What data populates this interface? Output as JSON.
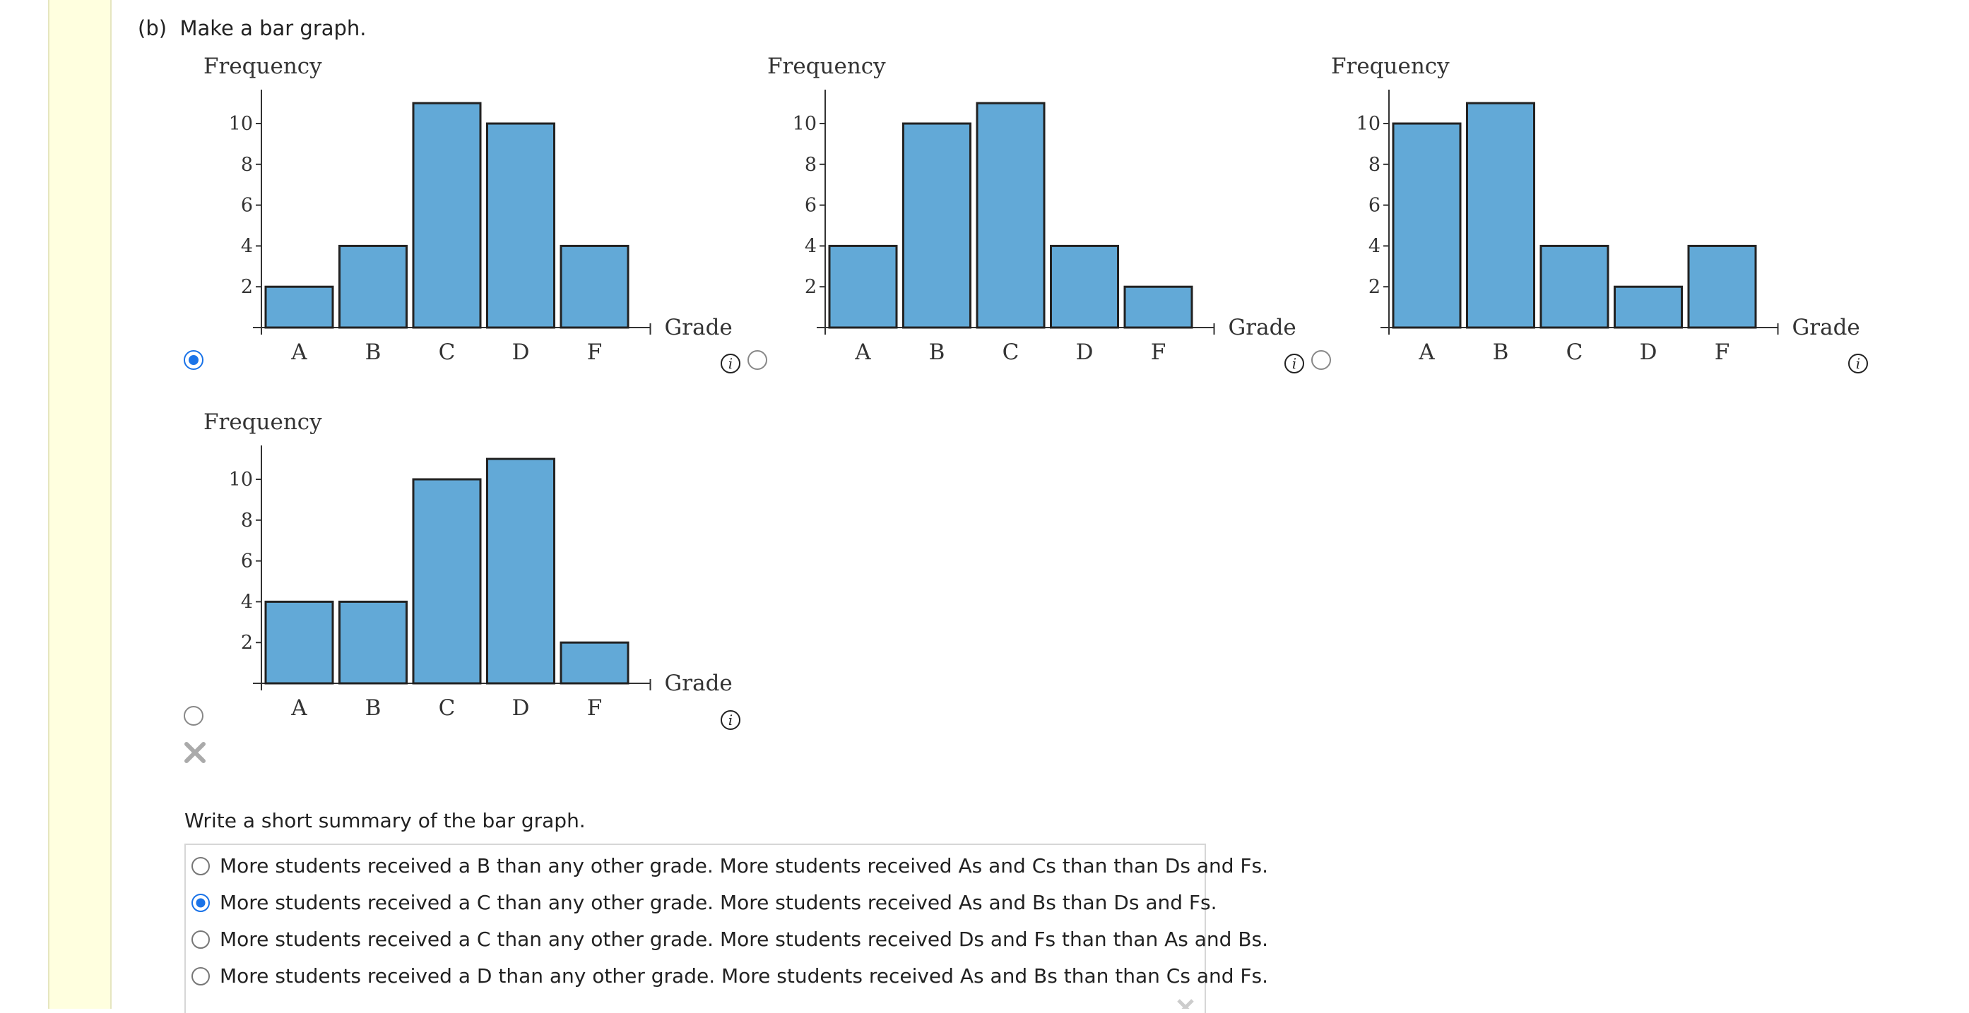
{
  "part": {
    "label": "(b)",
    "instruction": "Make a bar graph."
  },
  "colors": {
    "bar_fill": "#62a9d7",
    "bar_stroke": "#222222",
    "radio_selected": "#1a73e8",
    "margin_bg": "#ffffdf"
  },
  "icons": {
    "info": "info-icon",
    "wrong": "x-mark-icon"
  },
  "charts": [
    {
      "selected": true,
      "chart_data": {
        "type": "bar",
        "categories": [
          "A",
          "B",
          "C",
          "D",
          "F"
        ],
        "values": [
          2,
          4,
          11,
          10,
          4
        ],
        "ylabel": "Frequency",
        "xlabel": "Grade",
        "yticks": [
          2,
          4,
          6,
          8,
          10
        ]
      }
    },
    {
      "selected": false,
      "chart_data": {
        "type": "bar",
        "categories": [
          "A",
          "B",
          "C",
          "D",
          "F"
        ],
        "values": [
          4,
          10,
          11,
          4,
          2
        ],
        "ylabel": "Frequency",
        "xlabel": "Grade",
        "yticks": [
          2,
          4,
          6,
          8,
          10
        ]
      }
    },
    {
      "selected": false,
      "chart_data": {
        "type": "bar",
        "categories": [
          "A",
          "B",
          "C",
          "D",
          "F"
        ],
        "values": [
          10,
          11,
          4,
          2,
          4
        ],
        "ylabel": "Frequency",
        "xlabel": "Grade",
        "yticks": [
          2,
          4,
          6,
          8,
          10
        ]
      }
    },
    {
      "selected": false,
      "chart_data": {
        "type": "bar",
        "categories": [
          "A",
          "B",
          "C",
          "D",
          "F"
        ],
        "values": [
          4,
          4,
          10,
          11,
          2
        ],
        "ylabel": "Frequency",
        "xlabel": "Grade",
        "yticks": [
          2,
          4,
          6,
          8,
          10
        ]
      }
    }
  ],
  "summary": {
    "prompt": "Write a short summary of the bar graph.",
    "options": [
      {
        "text": "More students received a B than any other grade. More students received As and Cs than than Ds and Fs.",
        "selected": false
      },
      {
        "text": "More students received a C than any other grade. More students received As and Bs than Ds and Fs.",
        "selected": true
      },
      {
        "text": "More students received a C than any other grade. More students received Ds and Fs than than As and Bs.",
        "selected": false
      },
      {
        "text": "More students received a D than any other grade. More students received As and Bs than than Cs and Fs.",
        "selected": false
      }
    ]
  }
}
